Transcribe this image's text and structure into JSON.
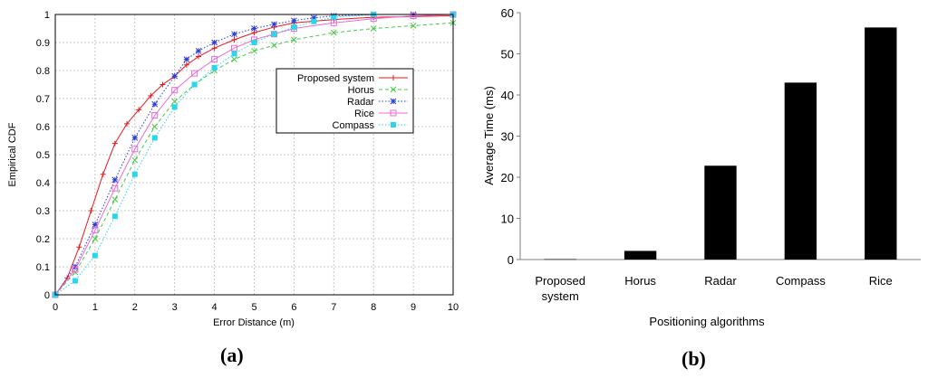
{
  "chart_data": [
    {
      "type": "line",
      "panel_label": "(a)",
      "title": "",
      "xlabel": "Error Distance (m)",
      "ylabel": "Empirical CDF",
      "xlim": [
        0,
        10
      ],
      "ylim": [
        0,
        1
      ],
      "xticks": [
        "0",
        "1",
        "2",
        "3",
        "4",
        "5",
        "6",
        "7",
        "8",
        "9",
        "10"
      ],
      "yticks": [
        "0",
        "0.1",
        "0.2",
        "0.3",
        "0.4",
        "0.5",
        "0.6",
        "0.7",
        "0.8",
        "0.9",
        "1"
      ],
      "grid": true,
      "legend_position": "right",
      "series": [
        {
          "name": "Proposed system",
          "color": "#e8191e",
          "marker": "plus",
          "dash": "solid",
          "x": [
            0,
            0.3,
            0.6,
            0.9,
            1.2,
            1.5,
            1.8,
            2.1,
            2.4,
            2.7,
            3.0,
            3.3,
            3.6,
            4.0,
            4.5,
            5.0,
            5.5,
            6.0,
            7.0,
            8.0,
            10.0
          ],
          "y": [
            0,
            0.06,
            0.17,
            0.3,
            0.43,
            0.54,
            0.61,
            0.66,
            0.71,
            0.75,
            0.78,
            0.82,
            0.85,
            0.88,
            0.91,
            0.935,
            0.955,
            0.97,
            0.982,
            0.99,
            0.995
          ]
        },
        {
          "name": "Horus",
          "color": "#49c94a",
          "marker": "x",
          "dash": "dashed",
          "x": [
            0,
            0.5,
            1.0,
            1.5,
            2.0,
            2.5,
            3.0,
            3.5,
            4.0,
            4.5,
            5.0,
            5.5,
            6.0,
            7.0,
            8.0,
            9.0,
            10.0
          ],
          "y": [
            0,
            0.08,
            0.2,
            0.34,
            0.48,
            0.6,
            0.69,
            0.75,
            0.8,
            0.84,
            0.87,
            0.89,
            0.91,
            0.935,
            0.95,
            0.96,
            0.97
          ]
        },
        {
          "name": "Radar",
          "color": "#2a3bd6",
          "marker": "star",
          "dash": "dotted",
          "x": [
            0,
            0.5,
            1.0,
            1.5,
            2.0,
            2.5,
            3.0,
            3.3,
            3.6,
            4.0,
            4.5,
            5.0,
            5.5,
            6.0,
            6.5,
            7.0,
            8.0,
            9.0,
            10.0
          ],
          "y": [
            0,
            0.1,
            0.25,
            0.41,
            0.56,
            0.68,
            0.78,
            0.84,
            0.87,
            0.9,
            0.93,
            0.95,
            0.965,
            0.978,
            0.988,
            0.995,
            1,
            1,
            1
          ]
        },
        {
          "name": "Rice",
          "color": "#e86ad8",
          "marker": "square",
          "dash": "solid",
          "x": [
            0,
            0.5,
            1.0,
            1.5,
            2.0,
            2.5,
            3.0,
            3.5,
            4.0,
            4.5,
            5.0,
            5.5,
            6.0,
            7.0,
            8.0,
            9.0,
            10.0
          ],
          "y": [
            0,
            0.09,
            0.23,
            0.38,
            0.52,
            0.64,
            0.73,
            0.79,
            0.84,
            0.88,
            0.91,
            0.93,
            0.95,
            0.97,
            0.985,
            0.995,
            1
          ]
        },
        {
          "name": "Compass",
          "color": "#28d6ee",
          "marker": "filled-square",
          "dash": "dotted",
          "x": [
            0,
            0.5,
            1.0,
            1.5,
            2.0,
            2.5,
            3.0,
            3.5,
            4.0,
            4.5,
            5.0,
            5.5,
            6.0,
            6.5,
            7.0,
            8.0,
            10.0
          ],
          "y": [
            0,
            0.05,
            0.14,
            0.28,
            0.43,
            0.56,
            0.67,
            0.75,
            0.81,
            0.86,
            0.9,
            0.93,
            0.955,
            0.975,
            0.99,
            1,
            1
          ]
        }
      ]
    },
    {
      "type": "bar",
      "panel_label": "(b)",
      "title": "",
      "xlabel": "Positioning algorithms",
      "ylabel": "Average Time (ms)",
      "ylim": [
        0,
        60
      ],
      "yticks": [
        "0",
        "10",
        "20",
        "30",
        "40",
        "50",
        "60"
      ],
      "grid": false,
      "categories": [
        [
          "Proposed",
          "system"
        ],
        [
          "Horus"
        ],
        [
          "Radar"
        ],
        [
          "Compass"
        ],
        [
          "Rice"
        ]
      ],
      "values": [
        0.1,
        2.1,
        22.8,
        43.0,
        56.4
      ],
      "bar_color": "#000000"
    }
  ]
}
